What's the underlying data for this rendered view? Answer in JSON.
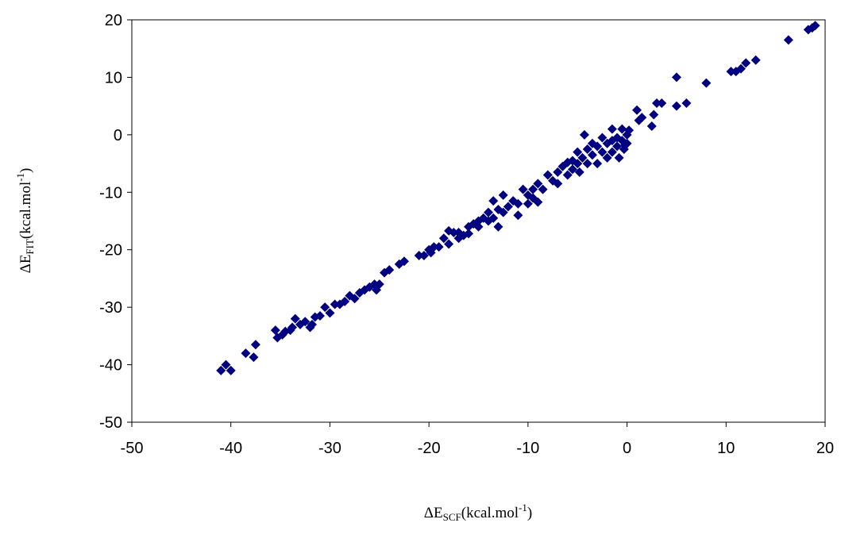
{
  "chart_data": {
    "type": "scatter",
    "xlabel": [
      "ΔE",
      "SCF",
      "(kcal.mol",
      "-1",
      ")"
    ],
    "ylabel": [
      "ΔE",
      "FIT",
      "(kcal.mol",
      "-1",
      ")"
    ],
    "color": "#000080",
    "xlim": [
      -50,
      20
    ],
    "xticks": [
      -50,
      -40,
      -30,
      -20,
      -10,
      0,
      10,
      20
    ],
    "ylim": [
      -50,
      20
    ],
    "yticks": [
      -50,
      -40,
      -30,
      -20,
      -10,
      0,
      10,
      20
    ],
    "x": [
      -41,
      -40.5,
      -40,
      -38.5,
      -37.5,
      -37.7,
      -35.5,
      -35.3,
      -34.8,
      -34.5,
      -34,
      -33.8,
      -33.5,
      -33,
      -32.5,
      -32,
      -31.8,
      -31.5,
      -31,
      -30.5,
      -30,
      -29.5,
      -29,
      -28.5,
      -28,
      -27.5,
      -27,
      -26.5,
      -26,
      -25.5,
      -25.3,
      -25,
      -24.5,
      -24,
      -23,
      -22.5,
      -21,
      -20.5,
      -20,
      -19.8,
      -19.5,
      -19,
      -18.5,
      -18,
      -18,
      -17.5,
      -17,
      -17,
      -16.5,
      -16,
      -16,
      -15.5,
      -15,
      -15,
      -14.5,
      -14,
      -14,
      -13.5,
      -13.5,
      -13,
      -13,
      -12.5,
      -12.5,
      -12,
      -11.5,
      -11,
      -11,
      -10.5,
      -10,
      -10,
      -9.5,
      -9.5,
      -9,
      -9,
      -8.5,
      -8,
      -7.5,
      -7,
      -7,
      -6.5,
      -6,
      -6,
      -5.5,
      -5.5,
      -5,
      -5,
      -4.8,
      -4.5,
      -4.3,
      -4,
      -4,
      -3.5,
      -3.5,
      -3,
      -3,
      -2.5,
      -2.5,
      -2,
      -2,
      -1.5,
      -1.5,
      -1.5,
      -1,
      -1,
      -0.8,
      -0.5,
      -0.5,
      -0.3,
      0,
      0,
      0.2,
      -0.2,
      1,
      1.2,
      1.5,
      2.5,
      2.7,
      3,
      3.5,
      5,
      5,
      6,
      8,
      10.5,
      11,
      11.5,
      12,
      13,
      16.3,
      18.3,
      18.7,
      19
    ],
    "y": [
      -41,
      -40,
      -41,
      -38,
      -36.5,
      -38.7,
      -34,
      -35.3,
      -34.8,
      -34.2,
      -34,
      -33.5,
      -32,
      -33,
      -32.5,
      -33.5,
      -33,
      -31.7,
      -31.5,
      -30,
      -31,
      -29.5,
      -29.5,
      -29,
      -28,
      -28.5,
      -27.5,
      -27,
      -26.5,
      -26,
      -27,
      -26,
      -24,
      -23.5,
      -22.5,
      -22,
      -21,
      -21,
      -20,
      -20.5,
      -19.5,
      -19.5,
      -18,
      -19,
      -16.7,
      -17,
      -18,
      -17,
      -17.5,
      -16,
      -17.2,
      -15.5,
      -16,
      -15,
      -14.5,
      -15,
      -13.5,
      -14.5,
      -11.5,
      -13,
      -16,
      -13.5,
      -10.5,
      -12.5,
      -11.5,
      -12,
      -14,
      -9.5,
      -10.5,
      -12,
      -9.5,
      -11,
      -8.5,
      -11.7,
      -9.5,
      -7,
      -8,
      -6.5,
      -8.5,
      -5.5,
      -7,
      -4.8,
      -6,
      -4.5,
      -5,
      -3,
      -6.5,
      -4,
      0,
      -2.5,
      -5,
      -3.5,
      -1.5,
      -2,
      -5,
      -3,
      -0.5,
      -1.5,
      -4,
      -1,
      -3,
      1,
      -2,
      -0.5,
      -4,
      -1,
      1,
      -2.5,
      0,
      -1.5,
      0.8,
      -1.8,
      4.3,
      2.5,
      3,
      1.5,
      3.5,
      5.5,
      5.5,
      10,
      5,
      5.5,
      9,
      11,
      11,
      11.5,
      12.5,
      13,
      16.5,
      18.3,
      18.6,
      19
    ]
  }
}
